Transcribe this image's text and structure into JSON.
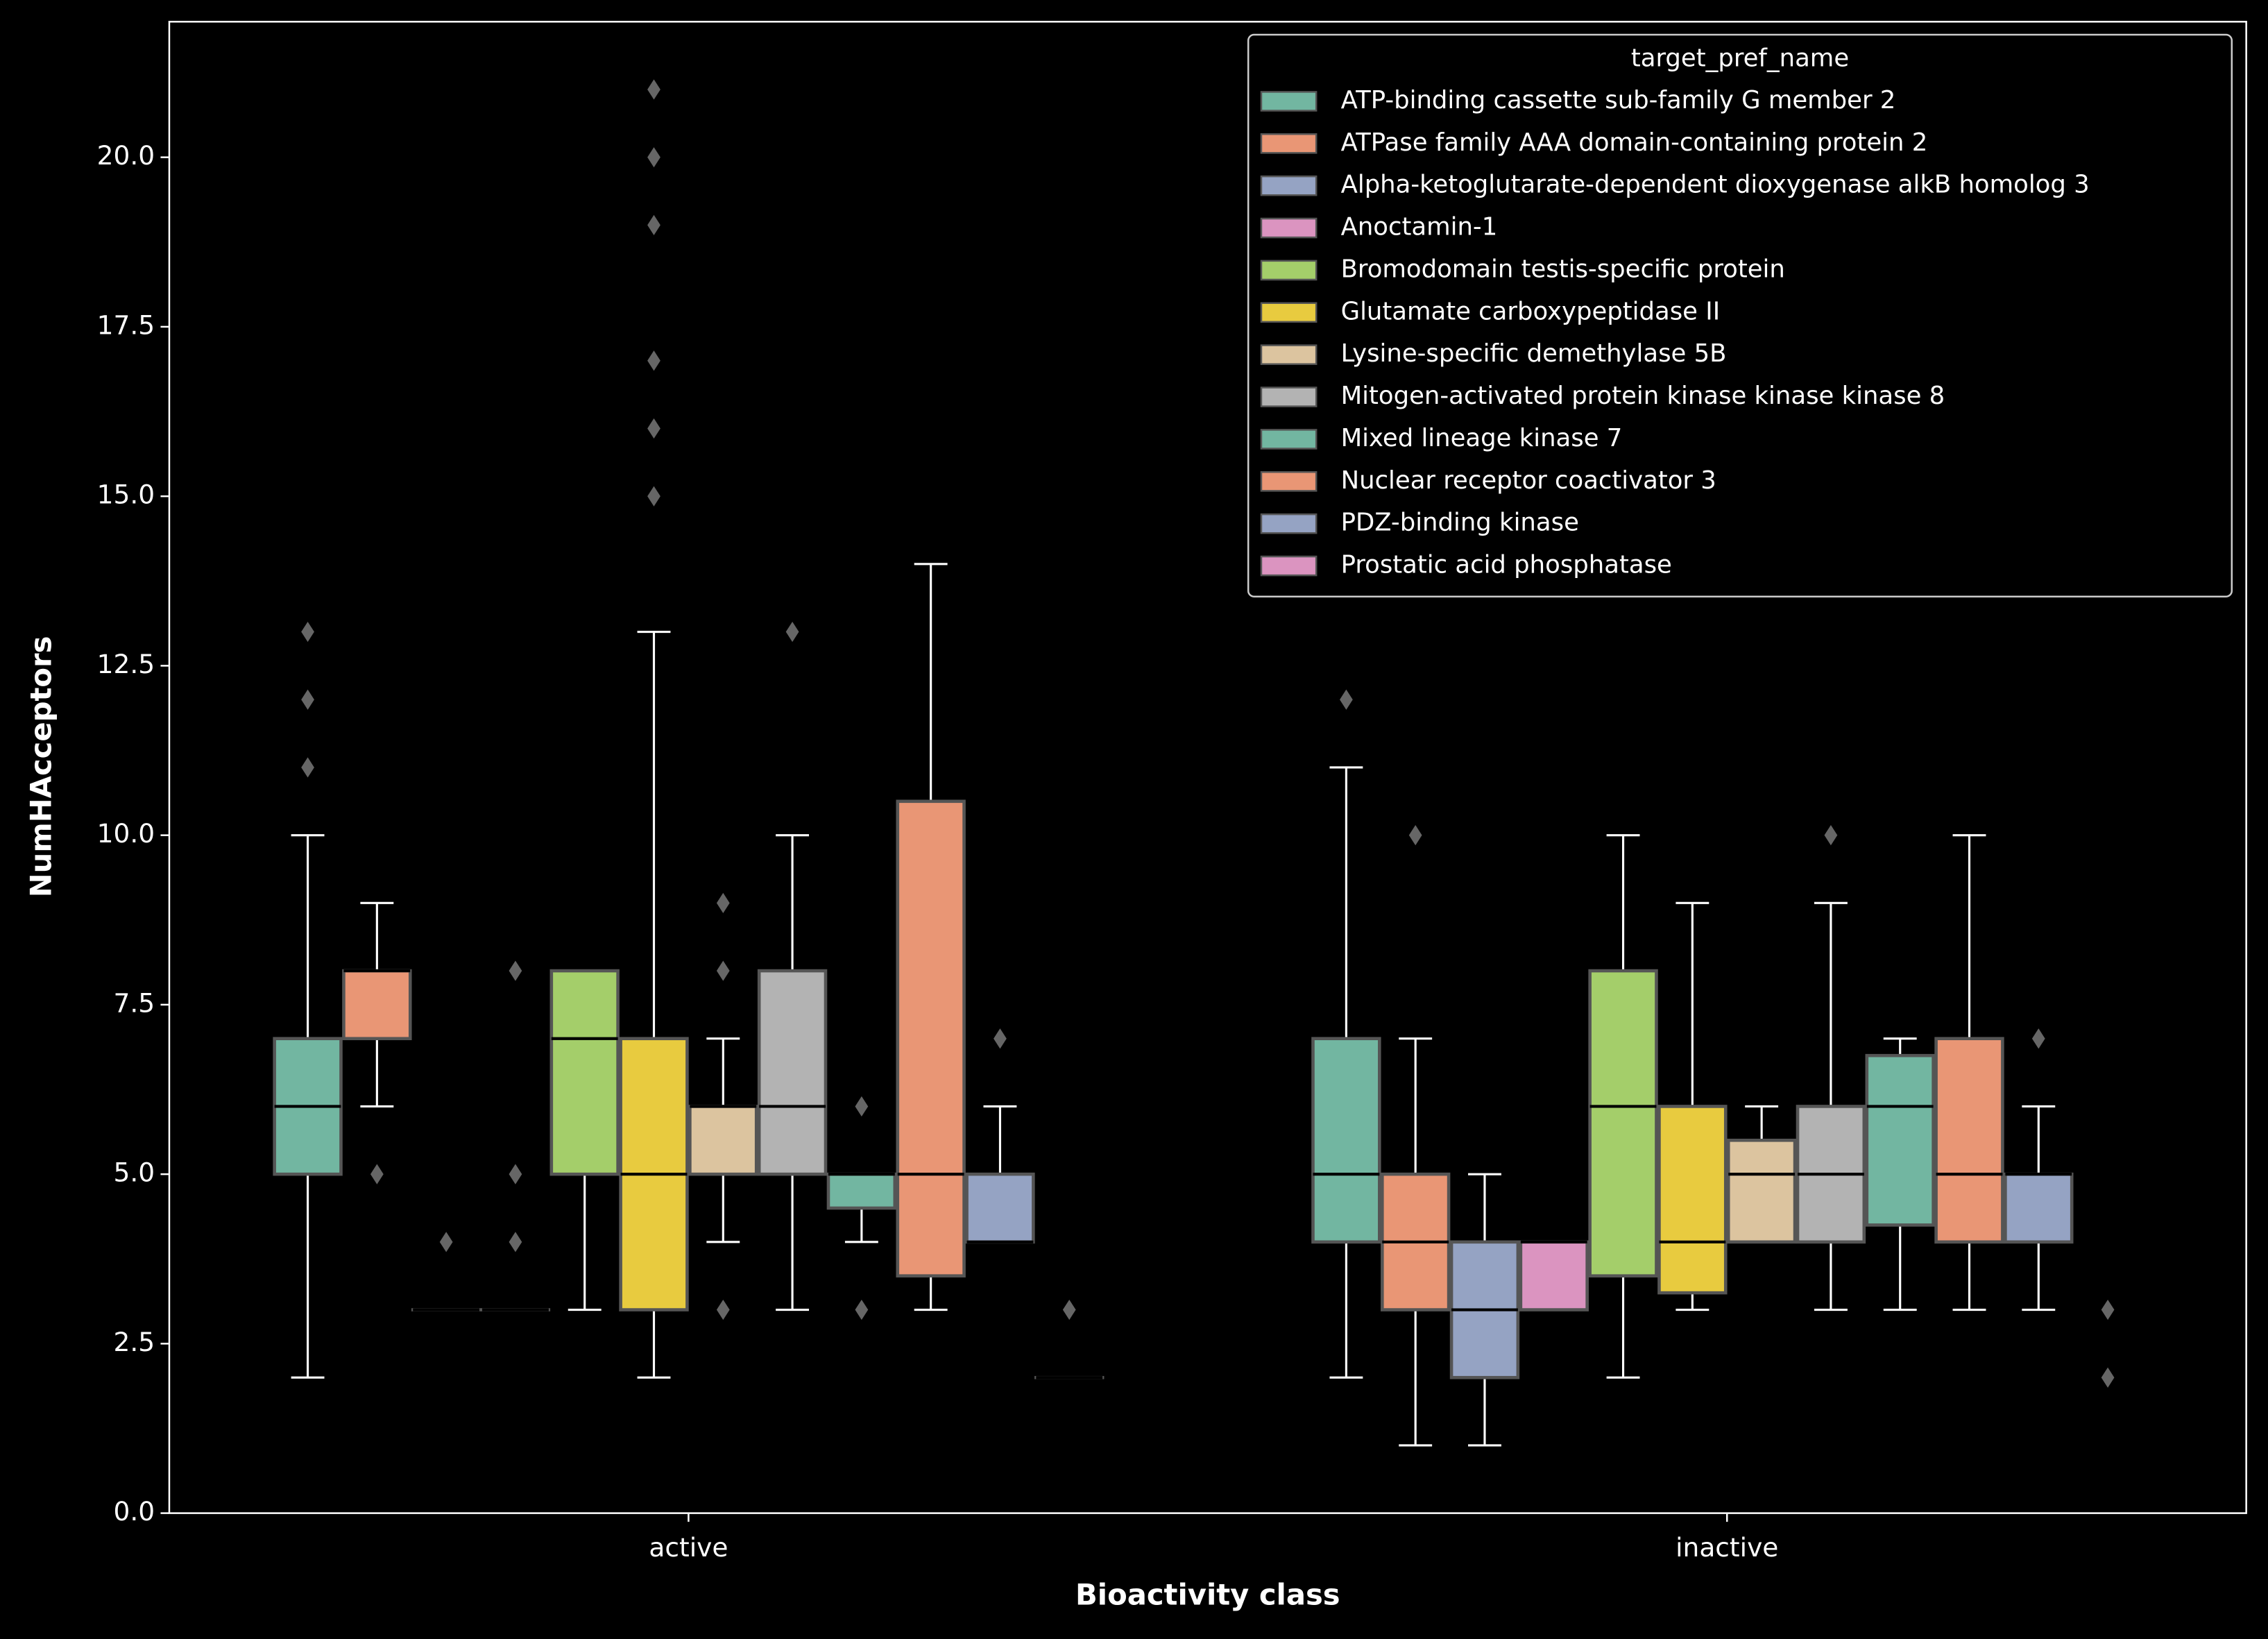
{
  "chart_data": {
    "type": "boxplot",
    "x_label": "Bioactivity class",
    "y_label": "NumHAcceptors",
    "categories": [
      "active",
      "inactive"
    ],
    "ylim": [
      0,
      22
    ],
    "yticks": [
      {
        "value": 0,
        "label": "0.0"
      },
      2.5,
      {
        "value": 5,
        "label": "5.0"
      },
      7.5,
      {
        "value": 10,
        "label": "10.0"
      },
      12.5,
      {
        "value": 15,
        "label": "15.0"
      },
      17.5,
      {
        "value": 20,
        "label": "20.0"
      }
    ],
    "legend_title": "target_pref_name",
    "legend_position": "upper right",
    "series": [
      {
        "name": "ATP-binding cassette sub-family G member 2",
        "color": "#72b6a1",
        "boxes": [
          {
            "whislo": 2,
            "q1": 5,
            "med": 6,
            "q3": 7,
            "whishi": 10,
            "fliers": [
              11,
              12,
              13
            ]
          },
          {
            "whislo": 2,
            "q1": 4,
            "med": 5,
            "q3": 7,
            "whishi": 11,
            "fliers": [
              12
            ]
          }
        ]
      },
      {
        "name": "ATPase family AAA domain-containing protein 2",
        "color": "#e99675",
        "boxes": [
          {
            "whislo": 6,
            "q1": 7,
            "med": 8,
            "q3": 8,
            "whishi": 9,
            "fliers": [
              5
            ]
          },
          {
            "whislo": 1,
            "q1": 3,
            "med": 4,
            "q3": 5,
            "whishi": 7,
            "fliers": [
              10
            ]
          }
        ]
      },
      {
        "name": "Alpha-ketoglutarate-dependent dioxygenase alkB homolog 3",
        "color": "#95a3c3",
        "boxes": [
          {
            "whislo": 3,
            "q1": 3,
            "med": 3,
            "q3": 3,
            "whishi": 3,
            "fliers": [
              4
            ]
          },
          {
            "whislo": 1,
            "q1": 2,
            "med": 3,
            "q3": 4,
            "whishi": 5,
            "fliers": []
          }
        ]
      },
      {
        "name": "Anoctamin-1",
        "color": "#db94c0",
        "boxes": [
          {
            "whislo": 3,
            "q1": 3,
            "med": 3,
            "q3": 3,
            "whishi": 3,
            "fliers": [
              4,
              5,
              8
            ]
          },
          {
            "whislo": 3,
            "q1": 3,
            "med": 4,
            "q3": 4,
            "whishi": 4,
            "fliers": []
          }
        ]
      },
      {
        "name": "Bromodomain testis-specific protein",
        "color": "#a4ce6a",
        "boxes": [
          {
            "whislo": 3,
            "q1": 5,
            "med": 7,
            "q3": 8,
            "whishi": 8,
            "fliers": []
          },
          {
            "whislo": 2,
            "q1": 3.5,
            "med": 6,
            "q3": 8,
            "whishi": 10,
            "fliers": []
          }
        ]
      },
      {
        "name": "Glutamate carboxypeptidase II",
        "color": "#e8cb3f",
        "boxes": [
          {
            "whislo": 2,
            "q1": 3,
            "med": 5,
            "q3": 7,
            "whishi": 13,
            "fliers": [
              15,
              16,
              17,
              19,
              20,
              21
            ]
          },
          {
            "whislo": 3,
            "q1": 3.25,
            "med": 4,
            "q3": 6,
            "whishi": 9,
            "fliers": []
          }
        ]
      },
      {
        "name": "Lysine-specific demethylase 5B",
        "color": "#dcc49f",
        "boxes": [
          {
            "whislo": 4,
            "q1": 5,
            "med": 6,
            "q3": 6,
            "whishi": 7,
            "fliers": [
              3,
              8,
              9
            ]
          },
          {
            "whislo": 4,
            "q1": 4,
            "med": 5,
            "q3": 5.5,
            "whishi": 6,
            "fliers": []
          }
        ]
      },
      {
        "name": "Mitogen-activated protein kinase kinase kinase 8",
        "color": "#b3b3b3",
        "boxes": [
          {
            "whislo": 3,
            "q1": 5,
            "med": 6,
            "q3": 8,
            "whishi": 10,
            "fliers": [
              13
            ]
          },
          {
            "whislo": 3,
            "q1": 4,
            "med": 5,
            "q3": 6,
            "whishi": 9,
            "fliers": [
              10
            ]
          }
        ]
      },
      {
        "name": "Mixed lineage kinase 7",
        "color": "#72b6a1",
        "boxes": [
          {
            "whislo": 4,
            "q1": 4.5,
            "med": 5,
            "q3": 5,
            "whishi": 5,
            "fliers": [
              3,
              6
            ]
          },
          {
            "whislo": 3,
            "q1": 4.25,
            "med": 6,
            "q3": 6.75,
            "whishi": 7,
            "fliers": []
          }
        ]
      },
      {
        "name": "Nuclear receptor coactivator 3",
        "color": "#e99675",
        "boxes": [
          {
            "whislo": 3,
            "q1": 3.5,
            "med": 5,
            "q3": 10.5,
            "whishi": 14,
            "fliers": []
          },
          {
            "whislo": 3,
            "q1": 4,
            "med": 5,
            "q3": 7,
            "whishi": 10,
            "fliers": []
          }
        ]
      },
      {
        "name": "PDZ-binding kinase",
        "color": "#95a3c3",
        "boxes": [
          {
            "whislo": 4,
            "q1": 4,
            "med": 4,
            "q3": 5,
            "whishi": 6,
            "fliers": [
              7
            ]
          },
          {
            "whislo": 3,
            "q1": 4,
            "med": 5,
            "q3": 5,
            "whishi": 6,
            "fliers": [
              7
            ]
          }
        ]
      },
      {
        "name": "Prostatic acid phosphatase",
        "color": "#db94c0",
        "boxes": [
          {
            "whislo": 2,
            "q1": 2,
            "med": 2,
            "q3": 2,
            "whishi": 2,
            "fliers": [
              3
            ]
          },
          {
            "whislo": null,
            "q1": null,
            "med": null,
            "q3": null,
            "whishi": null,
            "fliers": [
              3,
              2
            ]
          }
        ]
      }
    ]
  }
}
